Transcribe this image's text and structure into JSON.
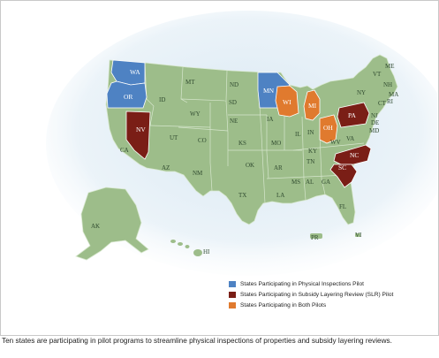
{
  "colors": {
    "physical": "#4e82c3",
    "slr": "#7a1e16",
    "both": "#e07a2e",
    "land": "#9dbd8a",
    "border": "#cfe0c3",
    "glow": "#d6e6f1"
  },
  "states": {
    "WA": "WA",
    "OR": "OR",
    "CA": "CA",
    "NV": "NV",
    "AZ": "AZ",
    "UT": "UT",
    "ID": "ID",
    "MT": "MT",
    "WY": "WY",
    "CO": "CO",
    "NM": "NM",
    "ND": "ND",
    "SD": "SD",
    "NE": "NE",
    "KS": "KS",
    "OK": "OK",
    "TX": "TX",
    "MN": "MN",
    "IA": "IA",
    "MO": "MO",
    "AR": "AR",
    "LA": "LA",
    "WI": "WI",
    "MI": "MI",
    "IL": "IL",
    "IN": "IN",
    "OH": "OH",
    "KY": "KY",
    "TN": "TN",
    "MS": "MS",
    "AL": "AL",
    "GA": "GA",
    "FL": "FL",
    "SC": "SC",
    "NC": "NC",
    "VA": "VA",
    "WV": "WV",
    "PA": "PA",
    "NY": "NY",
    "NJ": "NJ",
    "DE": "DE",
    "MD": "MD",
    "CT": "CT",
    "RI": "RI",
    "MA": "MA",
    "VT": "VT",
    "NH": "NH",
    "ME": "ME",
    "AK": "AK",
    "HI": "HI",
    "PR": "PR",
    "VI": "VI"
  },
  "legend": [
    {
      "label": "States Participating in Physical Inspections Pilot",
      "color": "#4e82c3"
    },
    {
      "label": "States Participating in Subsidy Layering Review (SLR) Pilot",
      "color": "#7a1e16"
    },
    {
      "label": "States Participating in Both Pilots",
      "color": "#e07a2e"
    }
  ],
  "caption": "Ten states are participating in pilot programs to streamline physical inspections of properties and subsidy layering reviews."
}
